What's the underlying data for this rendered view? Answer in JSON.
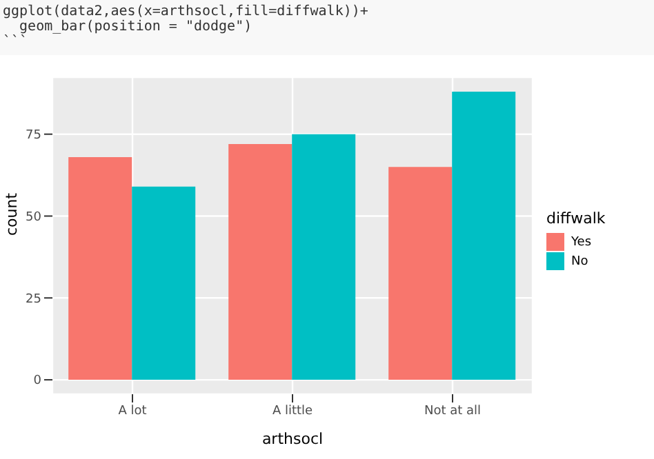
{
  "chart_data": {
    "type": "bar",
    "xlabel": "arthsocl",
    "ylabel": "count",
    "legend_title": "diffwalk",
    "annotations": [
      "ggplot(data2,aes(x=arthsocl,fill=diffwalk))+",
      "  geom_bar(position = \"dodge\")",
      "```"
    ],
    "categories": [
      "A lot",
      "A little",
      "Not at all"
    ],
    "series": [
      {
        "name": "Yes",
        "color": "#f8766d",
        "values": [
          68,
          72,
          65
        ]
      },
      {
        "name": "No",
        "color": "#00bfc4",
        "values": [
          59,
          75,
          88
        ]
      }
    ],
    "ylim": [
      -4.4,
      92.4
    ],
    "yticks": [
      0,
      25,
      50,
      75
    ],
    "grid": true,
    "legend": "right"
  }
}
